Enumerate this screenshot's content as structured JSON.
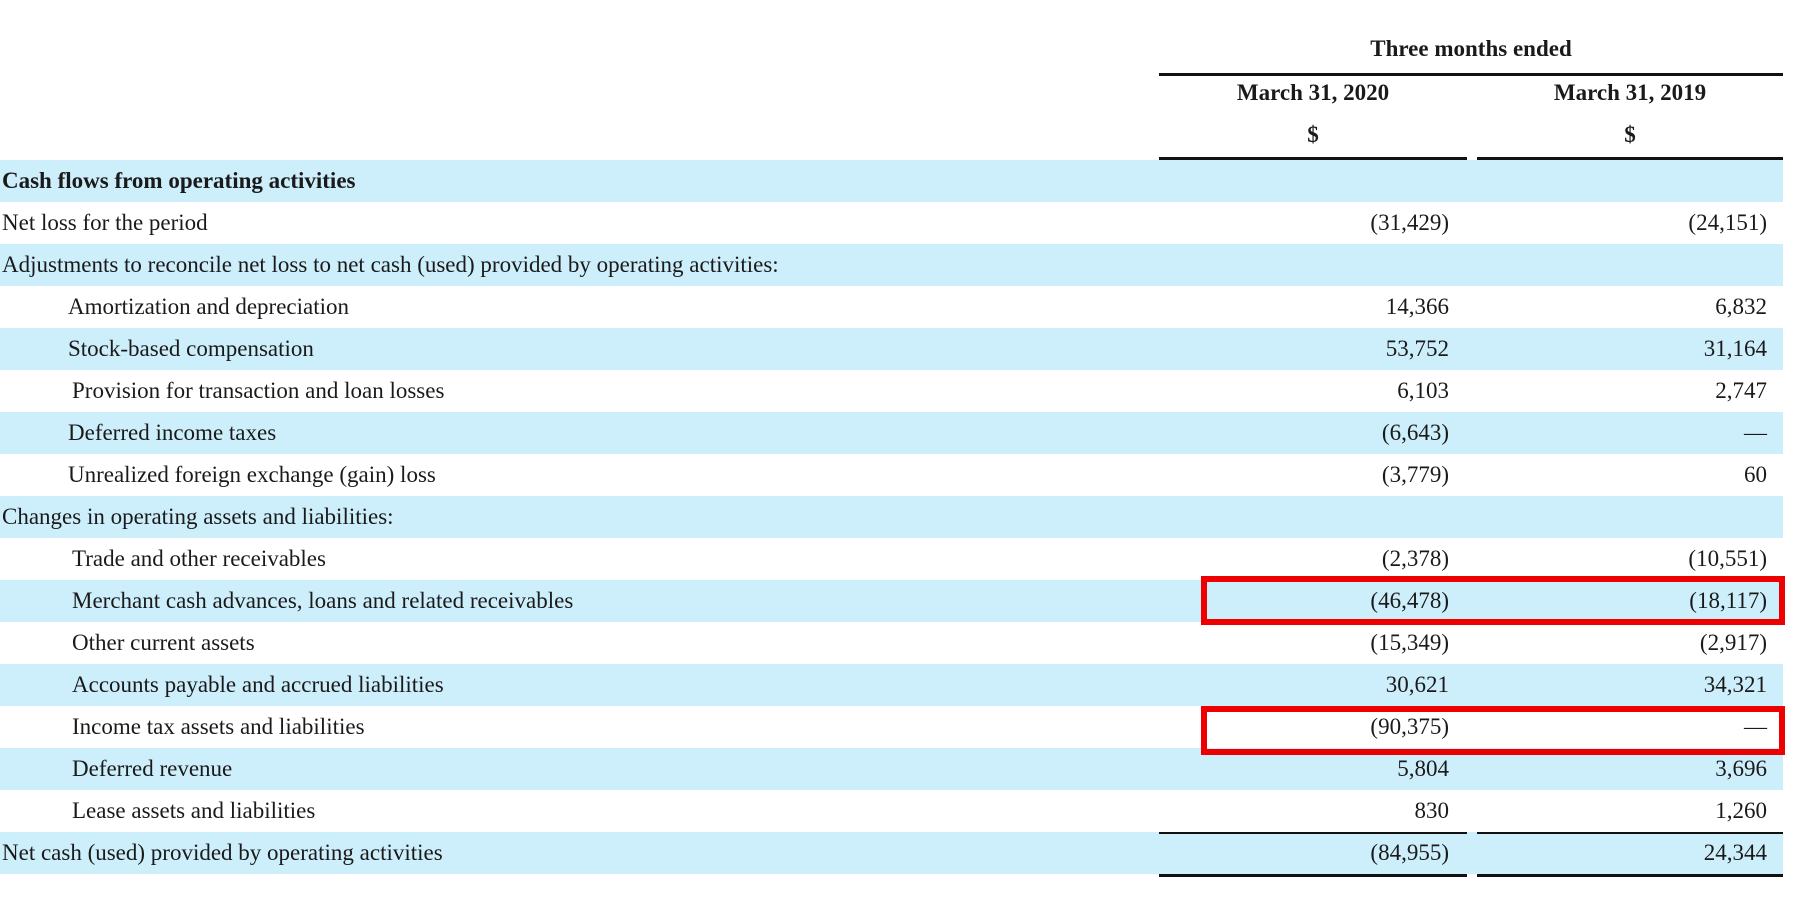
{
  "header": {
    "period": "Three months ended",
    "columns": [
      {
        "date": "March 31, 2020",
        "currency": "$"
      },
      {
        "date": "March 31, 2019",
        "currency": "$"
      }
    ]
  },
  "rows": [
    {
      "label": "Cash flows from operating activities",
      "v2020": "",
      "v2019": ""
    },
    {
      "label": "Net loss for the period",
      "v2020": "(31,429)",
      "v2019": "(24,151)"
    },
    {
      "label": "Adjustments to reconcile net loss to net cash (used) provided by operating activities:",
      "v2020": "",
      "v2019": ""
    },
    {
      "label": "Amortization and depreciation",
      "v2020": "14,366",
      "v2019": "6,832"
    },
    {
      "label": "Stock-based compensation",
      "v2020": "53,752",
      "v2019": "31,164"
    },
    {
      "label": "Provision for transaction and loan losses",
      "v2020": "6,103",
      "v2019": "2,747"
    },
    {
      "label": "Deferred income taxes",
      "v2020": "(6,643)",
      "v2019": "—"
    },
    {
      "label": "Unrealized foreign exchange (gain) loss",
      "v2020": "(3,779)",
      "v2019": "60"
    },
    {
      "label": "Changes in operating assets and liabilities:",
      "v2020": "",
      "v2019": ""
    },
    {
      "label": "Trade and other receivables",
      "v2020": "(2,378)",
      "v2019": "(10,551)"
    },
    {
      "label": "Merchant cash advances, loans and related receivables",
      "v2020": "(46,478)",
      "v2019": "(18,117)"
    },
    {
      "label": "Other current assets",
      "v2020": "(15,349)",
      "v2019": "(2,917)"
    },
    {
      "label": "Accounts payable and accrued liabilities",
      "v2020": "30,621",
      "v2019": "34,321"
    },
    {
      "label": "Income tax assets and liabilities",
      "v2020": "(90,375)",
      "v2019": "—"
    },
    {
      "label": "Deferred revenue",
      "v2020": "5,804",
      "v2019": "3,696"
    },
    {
      "label": "Lease assets and liabilities",
      "v2020": "830",
      "v2019": "1,260"
    },
    {
      "label": "Net cash (used) provided by operating activities",
      "v2020": "(84,955)",
      "v2019": "24,344"
    }
  ],
  "highlight_color": "#ee0000",
  "shade_color": "#cdeefb"
}
